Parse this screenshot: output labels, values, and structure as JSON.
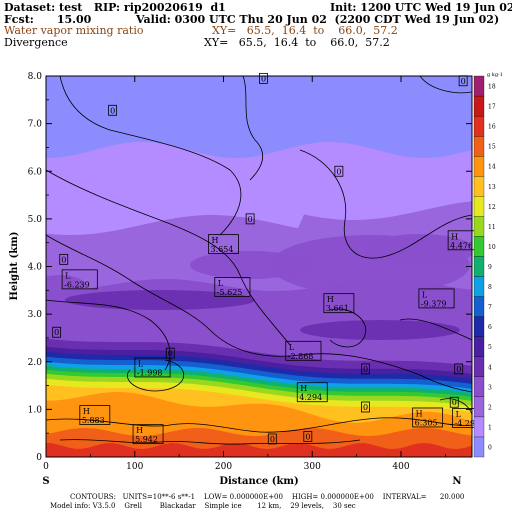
{
  "header": {
    "dataset_line": "Dataset: test   RIP: rip20020619  d1",
    "init_line": "Init: 1200 UTC Wed 19 Jun 02",
    "fcst_line": "Fcst:      15.00",
    "valid_line": "Valid: 0300 UTC Thu 20 Jun 02  (2200 CDT Wed 19 Jun 02)",
    "field1": "Water vapor mixing ratio",
    "field1_xy": "XY=   65.5,  16.4  to    66.0,  57.2",
    "field2": "Divergence",
    "field2_xy": "XY=   65.5,  16.4  to    66.0,  57.2"
  },
  "footer": {
    "contours_line": "CONTOURS:   UNITS=10**-6 s**-1    LOW= 0.000000E+00    HIGH= 0.000000E+00    INTERVAL=      20.000",
    "model_line": "Model info: V3.5.0    Grell        Blackadar    Simple ice       12 km,    29 levels,    30 sec"
  },
  "colors": {
    "plot_background": "#8c8cff",
    "field1_text": "#8b4513",
    "contour_line": "#000000"
  },
  "chart_data": {
    "type": "heatmap",
    "title": "Water vapor mixing ratio",
    "xlabel": "Distance (km)",
    "ylabel": "Height (km)",
    "xlim": [
      0,
      480
    ],
    "ylim": [
      0,
      8.0
    ],
    "x_ticks": [
      "0",
      "100",
      "200",
      "300",
      "400"
    ],
    "y_ticks": [
      "0",
      "1.0",
      "2.0",
      "3.0",
      "4.0",
      "5.0",
      "6.0",
      "7.0",
      "8.0"
    ],
    "x_end_labels": [
      "S",
      "N"
    ],
    "grid": false,
    "colorbar": {
      "unit": "g kg-1",
      "labels": [
        "0",
        "1",
        "2",
        "3",
        "4",
        "5",
        "6",
        "7",
        "8",
        "9",
        "10",
        "11",
        "12",
        "13",
        "14",
        "15",
        "16",
        "17",
        "18"
      ],
      "colors": [
        "#8c8cff",
        "#b48cff",
        "#9966dd",
        "#8a4fcc",
        "#6a2fb0",
        "#4a1fa0",
        "#1f2aa8",
        "#1560d0",
        "#0fa0e8",
        "#10b070",
        "#35c830",
        "#9ad820",
        "#e8e820",
        "#ffc020",
        "#ff9410",
        "#f06018",
        "#e03020",
        "#c81818",
        "#a02070"
      ]
    },
    "series": [
      {
        "name": "contour_labels_H",
        "labels": [
          {
            "x": 200,
            "y": 4.47,
            "value": "3.654"
          },
          {
            "x": 470,
            "y": 4.55,
            "value": "4.476"
          },
          {
            "x": 330,
            "y": 3.23,
            "value": "3.661"
          },
          {
            "x": 300,
            "y": 1.36,
            "value": "4.294"
          },
          {
            "x": 55,
            "y": 0.88,
            "value": "5.883"
          },
          {
            "x": 115,
            "y": 0.48,
            "value": "5.942"
          },
          {
            "x": 430,
            "y": 0.83,
            "value": "6.305"
          }
        ]
      },
      {
        "name": "contour_labels_L",
        "labels": [
          {
            "x": 38,
            "y": 3.73,
            "value": "-6.239"
          },
          {
            "x": 210,
            "y": 3.57,
            "value": "-5.625"
          },
          {
            "x": 440,
            "y": 3.33,
            "value": "-9.379"
          },
          {
            "x": 290,
            "y": 2.23,
            "value": "-2.868"
          },
          {
            "x": 120,
            "y": 1.88,
            "value": "-1.998"
          },
          {
            "x": 475,
            "y": 0.82,
            "value": "-4.29"
          }
        ]
      },
      {
        "name": "contour_zero_labels",
        "labels": [
          {
            "x": 245,
            "y": 7.95,
            "value": "0"
          },
          {
            "x": 470,
            "y": 7.9,
            "value": "0"
          },
          {
            "x": 75,
            "y": 7.28,
            "value": "0"
          },
          {
            "x": 330,
            "y": 6.0,
            "value": "0"
          },
          {
            "x": 230,
            "y": 5.0,
            "value": "0"
          },
          {
            "x": 20,
            "y": 4.15,
            "value": "0"
          },
          {
            "x": 12,
            "y": 2.62,
            "value": "0"
          },
          {
            "x": 140,
            "y": 2.18,
            "value": "0"
          },
          {
            "x": 360,
            "y": 1.85,
            "value": "0"
          },
          {
            "x": 465,
            "y": 1.85,
            "value": "0"
          },
          {
            "x": 460,
            "y": 1.15,
            "value": "0"
          },
          {
            "x": 360,
            "y": 1.05,
            "value": "0"
          },
          {
            "x": 255,
            "y": 0.38,
            "value": "0"
          },
          {
            "x": 295,
            "y": 0.43,
            "value": "0"
          }
        ]
      }
    ]
  }
}
